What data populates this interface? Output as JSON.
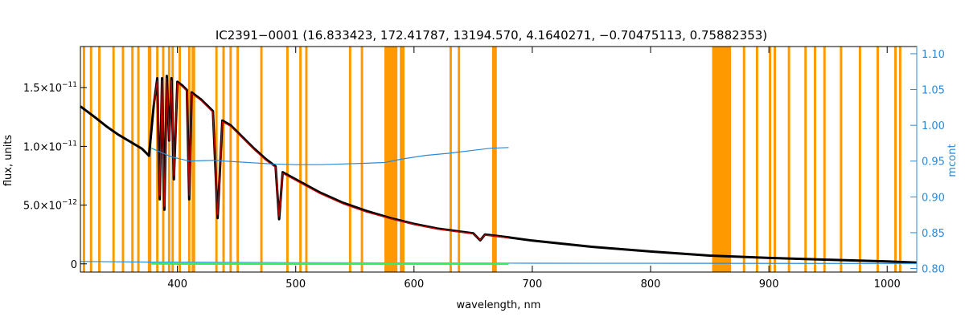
{
  "chart_data": {
    "type": "line",
    "title": "IC2391−0001    (16.833423, 172.41787, 13194.570, 4.1640271, −0.70475113, 0.75882353)",
    "xlabel": "wavelength, nm",
    "ylabel": "flux, units",
    "ylabel_right": "mcont",
    "xlim": [
      318,
      1025
    ],
    "ylim": [
      -7e-13,
      1.85e-11
    ],
    "ylim_right": [
      0.795,
      1.11
    ],
    "x_ticks": [
      400,
      500,
      600,
      700,
      800,
      900,
      1000
    ],
    "x_tick_labels": [
      "400",
      "500",
      "600",
      "700",
      "800",
      "900",
      "1000"
    ],
    "y_ticks": [
      0,
      5e-12,
      1e-11,
      1.5e-11
    ],
    "y_tick_labels": [
      {
        "mant": "0",
        "exp": ""
      },
      {
        "mant": "5.0×10",
        "exp": "−12"
      },
      {
        "mant": "1.0×10",
        "exp": "−11"
      },
      {
        "mant": "1.5×10",
        "exp": "−11"
      }
    ],
    "y_right_ticks": [
      0.8,
      0.85,
      0.9,
      0.95,
      1.0,
      1.05,
      1.1
    ],
    "y_right_tick_labels": [
      "0.80",
      "0.85",
      "0.90",
      "0.95",
      "1.00",
      "1.05",
      "1.10"
    ],
    "grid": false,
    "mask_band_color": "#ff9900",
    "mask_bands": [
      [
        320,
        322
      ],
      [
        326,
        328
      ],
      [
        333,
        335
      ],
      [
        345,
        347
      ],
      [
        353,
        355
      ],
      [
        361,
        363
      ],
      [
        366,
        368
      ],
      [
        375,
        378
      ],
      [
        382,
        384
      ],
      [
        387,
        389
      ],
      [
        392,
        394
      ],
      [
        395,
        397
      ],
      [
        401,
        403
      ],
      [
        409,
        411
      ],
      [
        412,
        415
      ],
      [
        432,
        434
      ],
      [
        438,
        440
      ],
      [
        444,
        446
      ],
      [
        450,
        452
      ],
      [
        470,
        472
      ],
      [
        492,
        494
      ],
      [
        503,
        505
      ],
      [
        508,
        510
      ],
      [
        545,
        547
      ],
      [
        555,
        557
      ],
      [
        575,
        586
      ],
      [
        588,
        592
      ],
      [
        630,
        632
      ],
      [
        637,
        639
      ],
      [
        666,
        670
      ],
      [
        852,
        868
      ],
      [
        878,
        880
      ],
      [
        889,
        891
      ],
      [
        900,
        902
      ],
      [
        904,
        906
      ],
      [
        916,
        918
      ],
      [
        930,
        932
      ],
      [
        938,
        940
      ],
      [
        946,
        948
      ],
      [
        960,
        962
      ],
      [
        976,
        978
      ],
      [
        991,
        993
      ],
      [
        1006,
        1008
      ],
      [
        1010,
        1012
      ]
    ],
    "series": [
      {
        "color": "#000000",
        "axis": "left",
        "points": [
          [
            318,
            1.34e-11
          ],
          [
            330,
            1.25e-11
          ],
          [
            340,
            1.17e-11
          ],
          [
            350,
            1.1e-11
          ],
          [
            360,
            1.04e-11
          ],
          [
            370,
            9.8e-12
          ],
          [
            376,
            9.2e-12
          ],
          [
            380,
            1.35e-11
          ],
          [
            383,
            1.58e-11
          ],
          [
            385,
            5.5e-12
          ],
          [
            387,
            1.58e-11
          ],
          [
            389,
            4.6e-12
          ],
          [
            391,
            1.6e-11
          ],
          [
            393,
            1.05e-11
          ],
          [
            395,
            1.58e-11
          ],
          [
            397,
            7.2e-12
          ],
          [
            400,
            1.55e-11
          ],
          [
            404,
            1.52e-11
          ],
          [
            408,
            1.48e-11
          ],
          [
            410,
            5.5e-12
          ],
          [
            412,
            1.46e-11
          ],
          [
            420,
            1.4e-11
          ],
          [
            430,
            1.3e-11
          ],
          [
            434,
            3.9e-12
          ],
          [
            438,
            1.22e-11
          ],
          [
            445,
            1.18e-11
          ],
          [
            455,
            1.08e-11
          ],
          [
            465,
            9.8e-12
          ],
          [
            475,
            8.9e-12
          ],
          [
            483,
            8.3e-12
          ],
          [
            486,
            3.8e-12
          ],
          [
            489,
            7.8e-12
          ],
          [
            500,
            7.2e-12
          ],
          [
            520,
            6.1e-12
          ],
          [
            540,
            5.2e-12
          ],
          [
            560,
            4.5e-12
          ],
          [
            580,
            3.9e-12
          ],
          [
            600,
            3.4e-12
          ],
          [
            620,
            3e-12
          ],
          [
            650,
            2.6e-12
          ],
          [
            656,
            2e-12
          ],
          [
            660,
            2.5e-12
          ],
          [
            680,
            2.25e-12
          ],
          [
            700,
            1.98e-12
          ],
          [
            750,
            1.45e-12
          ],
          [
            800,
            1.05e-12
          ],
          [
            850,
            7e-13
          ],
          [
            900,
            5e-13
          ],
          [
            950,
            3.5e-13
          ],
          [
            1000,
            2e-13
          ],
          [
            1025,
            1e-13
          ]
        ]
      },
      {
        "color": "#cc0000",
        "axis": "left",
        "points": [
          [
            380,
            1.35e-11
          ],
          [
            383,
            1.56e-11
          ],
          [
            385,
            5.8e-12
          ],
          [
            387,
            1.56e-11
          ],
          [
            389,
            4.9e-12
          ],
          [
            391,
            1.58e-11
          ],
          [
            393,
            1.05e-11
          ],
          [
            395,
            1.56e-11
          ],
          [
            397,
            7.5e-12
          ],
          [
            400,
            1.54e-11
          ],
          [
            404,
            1.51e-11
          ],
          [
            408,
            1.47e-11
          ],
          [
            410,
            5.8e-12
          ],
          [
            412,
            1.45e-11
          ],
          [
            420,
            1.39e-11
          ],
          [
            430,
            1.29e-11
          ],
          [
            434,
            4.2e-12
          ],
          [
            438,
            1.21e-11
          ],
          [
            445,
            1.17e-11
          ],
          [
            455,
            1.07e-11
          ],
          [
            465,
            9.7e-12
          ],
          [
            475,
            8.8e-12
          ],
          [
            483,
            8.2e-12
          ],
          [
            486,
            4e-12
          ],
          [
            489,
            7.7e-12
          ],
          [
            500,
            7.1e-12
          ],
          [
            520,
            6e-12
          ],
          [
            540,
            5.1e-12
          ],
          [
            560,
            4.4e-12
          ],
          [
            580,
            3.85e-12
          ],
          [
            600,
            3.35e-12
          ],
          [
            620,
            2.95e-12
          ],
          [
            650,
            2.55e-12
          ],
          [
            656,
            2.05e-12
          ],
          [
            660,
            2.45e-12
          ],
          [
            680,
            2.2e-12
          ]
        ]
      },
      {
        "color": "#2a8ad8",
        "axis": "right",
        "points": [
          [
            378,
            0.968
          ],
          [
            385,
            0.963
          ],
          [
            395,
            0.956
          ],
          [
            410,
            0.95
          ],
          [
            430,
            0.951
          ],
          [
            450,
            0.949
          ],
          [
            480,
            0.946
          ],
          [
            500,
            0.945
          ],
          [
            520,
            0.945
          ],
          [
            540,
            0.946
          ],
          [
            560,
            0.947
          ],
          [
            575,
            0.948
          ],
          [
            590,
            0.953
          ],
          [
            610,
            0.958
          ],
          [
            630,
            0.961
          ],
          [
            650,
            0.965
          ],
          [
            665,
            0.968
          ],
          [
            680,
            0.969
          ]
        ]
      },
      {
        "color": "#2a8ad8",
        "axis": "left",
        "points": [
          [
            318,
            2e-13
          ],
          [
            378,
            1.5e-13
          ],
          [
            500,
            1e-13
          ],
          [
            700,
            5e-14
          ],
          [
            1025,
            3e-14
          ]
        ]
      },
      {
        "color": "#33ee66",
        "axis": "left",
        "points": [
          [
            378,
            4e-14
          ],
          [
            400,
            2e-14
          ],
          [
            500,
            1e-14
          ],
          [
            600,
            1e-14
          ],
          [
            680,
            1e-14
          ]
        ]
      }
    ]
  }
}
